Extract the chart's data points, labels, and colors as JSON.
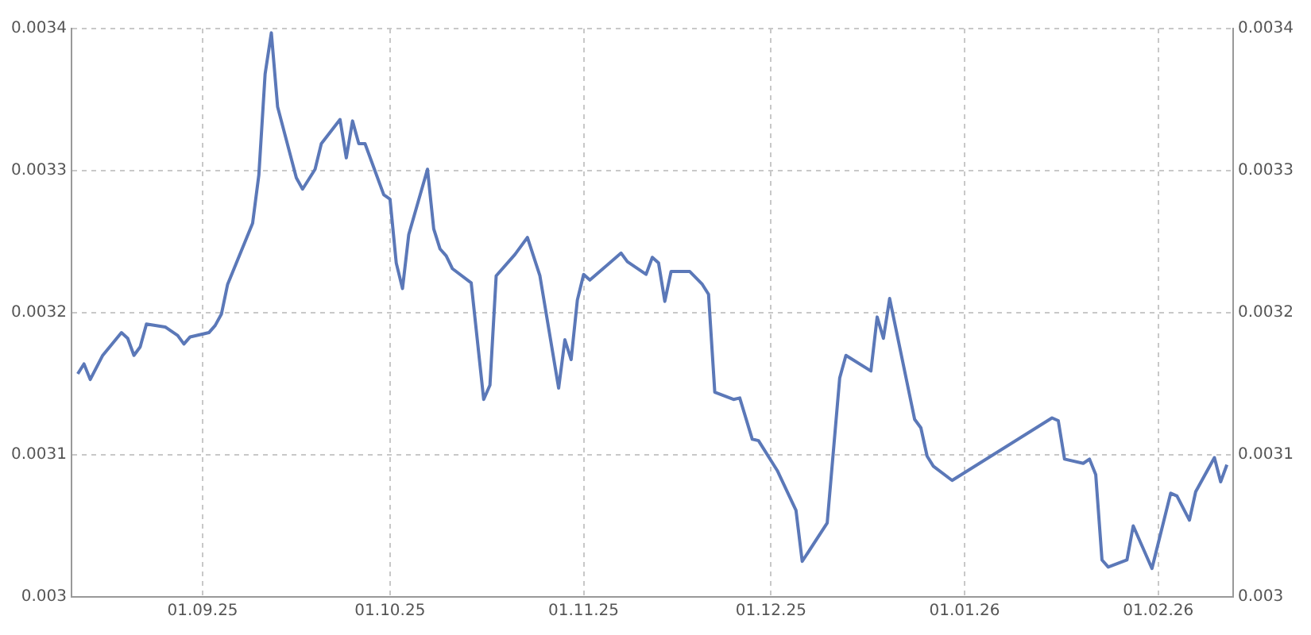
{
  "chart_data": {
    "type": "line",
    "line_style": "solid",
    "marker": "none",
    "grid": true,
    "legend": false,
    "xlim": [
      "2025-08-11",
      "2026-02-13"
    ],
    "xticks": [
      {
        "value": "2025-09-01",
        "label": "01.09.25"
      },
      {
        "value": "2025-10-01",
        "label": "01.10.25"
      },
      {
        "value": "2025-11-01",
        "label": "01.11.25"
      },
      {
        "value": "2025-12-01",
        "label": "01.12.25"
      },
      {
        "value": "2026-01-01",
        "label": "01.01.26"
      },
      {
        "value": "2026-02-01",
        "label": "01.02.26"
      }
    ],
    "ylim": [
      0.003,
      0.0034
    ],
    "yticks": [
      0.003,
      0.0031,
      0.0032,
      0.0033,
      0.0034
    ],
    "y2lim": [
      0.003,
      0.0034
    ],
    "y2ticks": [
      0.003,
      0.0031,
      0.0032,
      0.0033,
      0.0034
    ],
    "series": [
      {
        "color": "#5b78b8",
        "x": [
          "2025-08-12",
          "2025-08-13",
          "2025-08-14",
          "2025-08-16",
          "2025-08-19",
          "2025-08-20",
          "2025-08-21",
          "2025-08-22",
          "2025-08-23",
          "2025-08-26",
          "2025-08-28",
          "2025-08-29",
          "2025-08-30",
          "2025-09-02",
          "2025-09-03",
          "2025-09-04",
          "2025-09-05",
          "2025-09-09",
          "2025-09-10",
          "2025-09-11",
          "2025-09-12",
          "2025-09-13",
          "2025-09-16",
          "2025-09-17",
          "2025-09-19",
          "2025-09-20",
          "2025-09-23",
          "2025-09-24",
          "2025-09-25",
          "2025-09-26",
          "2025-09-27",
          "2025-09-30",
          "2025-10-01",
          "2025-10-02",
          "2025-10-03",
          "2025-10-04",
          "2025-10-07",
          "2025-10-08",
          "2025-10-09",
          "2025-10-10",
          "2025-10-11",
          "2025-10-14",
          "2025-10-16",
          "2025-10-17",
          "2025-10-18",
          "2025-10-21",
          "2025-10-23",
          "2025-10-25",
          "2025-10-28",
          "2025-10-29",
          "2025-10-30",
          "2025-10-31",
          "2025-11-01",
          "2025-11-02",
          "2025-11-07",
          "2025-11-08",
          "2025-11-11",
          "2025-11-12",
          "2025-11-13",
          "2025-11-14",
          "2025-11-15",
          "2025-11-18",
          "2025-11-20",
          "2025-11-21",
          "2025-11-22",
          "2025-11-25",
          "2025-11-26",
          "2025-11-28",
          "2025-11-29",
          "2025-12-02",
          "2025-12-05",
          "2025-12-06",
          "2025-12-10",
          "2025-12-12",
          "2025-12-13",
          "2025-12-17",
          "2025-12-18",
          "2025-12-19",
          "2025-12-20",
          "2025-12-24",
          "2025-12-25",
          "2025-12-26",
          "2025-12-27",
          "2025-12-30",
          "2026-01-15",
          "2026-01-16",
          "2026-01-17",
          "2026-01-20",
          "2026-01-21",
          "2026-01-22",
          "2026-01-23",
          "2026-01-24",
          "2026-01-27",
          "2026-01-28",
          "2026-01-31",
          "2026-02-03",
          "2026-02-04",
          "2026-02-06",
          "2026-02-07",
          "2026-02-10",
          "2026-02-11",
          "2026-02-12"
        ],
        "values": [
          0.003157,
          0.003164,
          0.003153,
          0.00317,
          0.003186,
          0.003182,
          0.00317,
          0.003176,
          0.003192,
          0.00319,
          0.003184,
          0.003178,
          0.003183,
          0.003186,
          0.003191,
          0.003199,
          0.00322,
          0.003263,
          0.003297,
          0.003368,
          0.003397,
          0.003345,
          0.003295,
          0.003287,
          0.003301,
          0.003319,
          0.003336,
          0.003309,
          0.003335,
          0.003319,
          0.003319,
          0.003283,
          0.00328,
          0.003235,
          0.003217,
          0.003255,
          0.003301,
          0.003259,
          0.003245,
          0.00324,
          0.003231,
          0.003221,
          0.003139,
          0.003149,
          0.003226,
          0.003241,
          0.003253,
          0.003226,
          0.003147,
          0.003181,
          0.003167,
          0.003209,
          0.003227,
          0.003223,
          0.003242,
          0.003236,
          0.003227,
          0.003239,
          0.003235,
          0.003208,
          0.003229,
          0.003229,
          0.00322,
          0.003213,
          0.003144,
          0.003139,
          0.00314,
          0.003111,
          0.00311,
          0.003089,
          0.003061,
          0.003025,
          0.003052,
          0.003154,
          0.00317,
          0.003159,
          0.003197,
          0.003182,
          0.00321,
          0.003125,
          0.003119,
          0.003099,
          0.003092,
          0.003082,
          0.003126,
          0.003124,
          0.003097,
          0.003094,
          0.003097,
          0.003086,
          0.003026,
          0.003021,
          0.003026,
          0.00305,
          0.00302,
          0.003073,
          0.003071,
          0.003054,
          0.003074,
          0.003098,
          0.003081,
          0.003093
        ]
      }
    ]
  }
}
